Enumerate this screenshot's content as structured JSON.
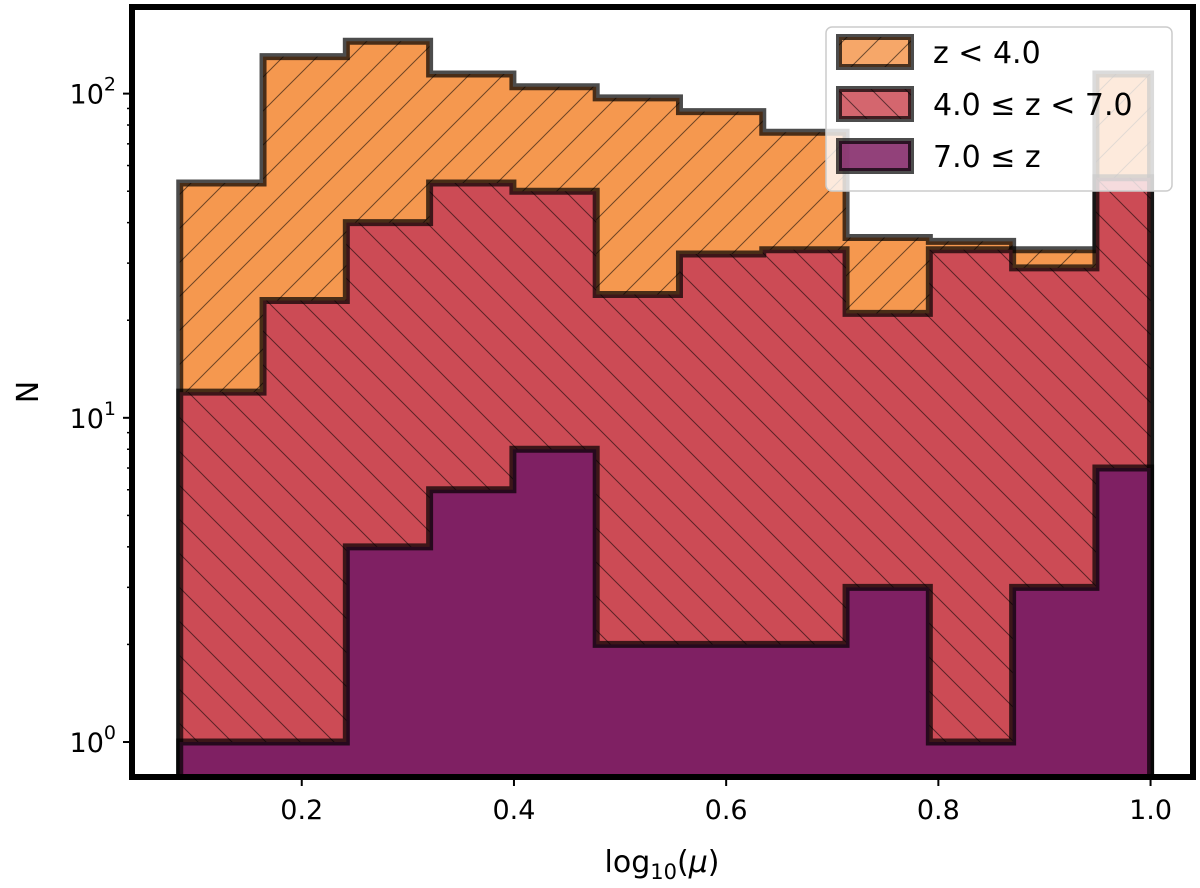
{
  "chart_data": {
    "type": "histogram",
    "xlabel": "log₁₀(μ)",
    "ylabel": "N",
    "xlim": [
      0.04,
      1.04
    ],
    "ylim": [
      0.78,
      185
    ],
    "yscale": "log",
    "xticks": [
      "0.2",
      "0.4",
      "0.6",
      "0.8",
      "1.0"
    ],
    "yticks": [
      {
        "base": "10",
        "exp": "0"
      },
      {
        "base": "10",
        "exp": "1"
      },
      {
        "base": "10",
        "exp": "2"
      }
    ],
    "bin_edges": [
      0.085,
      0.1635,
      0.242,
      0.3205,
      0.399,
      0.4775,
      0.556,
      0.6345,
      0.713,
      0.7915,
      0.87,
      0.9485,
      1.0
    ],
    "series": [
      {
        "name": "z < 4.0",
        "values": [
          53,
          130,
          145,
          115,
          105,
          97,
          88,
          76,
          36,
          35,
          33,
          115
        ],
        "color": "#f5984f",
        "hatch": "/"
      },
      {
        "name": "4.0 ≤ z < 7.0",
        "values": [
          12,
          23,
          40,
          53,
          50,
          24,
          32,
          33,
          21,
          33,
          29,
          55
        ],
        "color": "#cc4b55",
        "hatch": "\\"
      },
      {
        "name": "7.0 ≤ z",
        "values": [
          1,
          1,
          4,
          6,
          8,
          2,
          2,
          2,
          3,
          1,
          3,
          7
        ],
        "color": "#7f2063",
        "hatch": ""
      }
    ],
    "legend_position": "upper right"
  }
}
